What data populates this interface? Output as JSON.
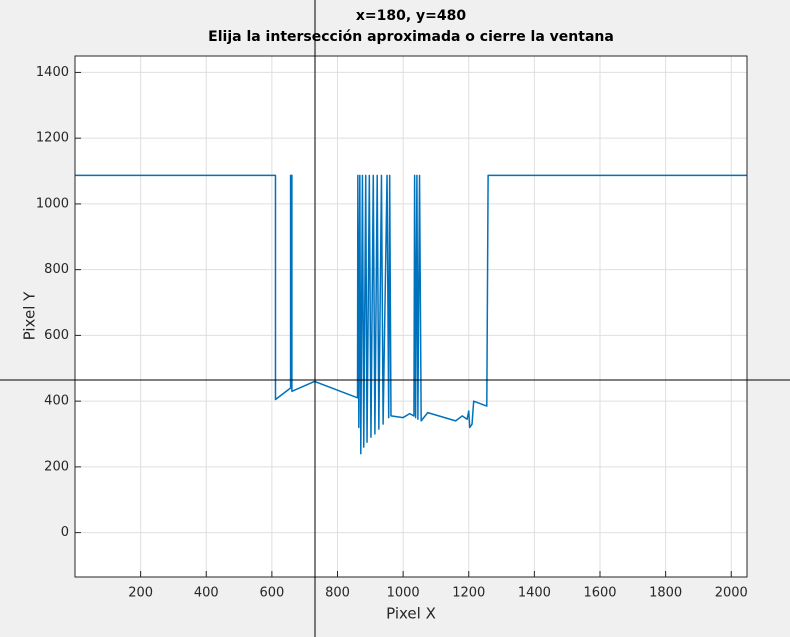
{
  "chart_data": {
    "type": "line",
    "title": "x=180, y=480",
    "subtitle": "Elija la intersección aproximada o cierre la ventana",
    "x_label": "Pixel X",
    "y_label": "Pixel Y",
    "xlim": [
      0,
      2048
    ],
    "ylim": [
      -135,
      1450
    ],
    "xticks": [
      200,
      400,
      600,
      800,
      1000,
      1200,
      1400,
      1600,
      1800,
      2000
    ],
    "yticks": [
      0,
      200,
      400,
      600,
      800,
      1000,
      1200,
      1400
    ],
    "grid": true,
    "series": [
      {
        "color": "#0072bd",
        "x": [
          0,
          611,
          611,
          657,
          657,
          661,
          661,
          730,
          861,
          862,
          865,
          868,
          871,
          876,
          880,
          886,
          890,
          897,
          902,
          909,
          914,
          921,
          926,
          934,
          939,
          951,
          956,
          959,
          963,
          1000,
          1020,
          1033,
          1035,
          1038,
          1042,
          1045,
          1050,
          1055,
          1075,
          1160,
          1180,
          1195,
          1200,
          1203,
          1210,
          1215,
          1255,
          1259,
          1270,
          2048
        ],
        "values": [
          1087,
          1087,
          405,
          440,
          1087,
          1087,
          430,
          460,
          410,
          1087,
          320,
          1087,
          240,
          1087,
          260,
          1087,
          275,
          1087,
          290,
          1087,
          300,
          1087,
          315,
          1087,
          330,
          1087,
          350,
          1087,
          355,
          350,
          362,
          355,
          1087,
          350,
          1087,
          345,
          1087,
          340,
          365,
          340,
          355,
          345,
          370,
          320,
          330,
          400,
          385,
          1087,
          1087,
          1087
        ]
      }
    ]
  }
}
